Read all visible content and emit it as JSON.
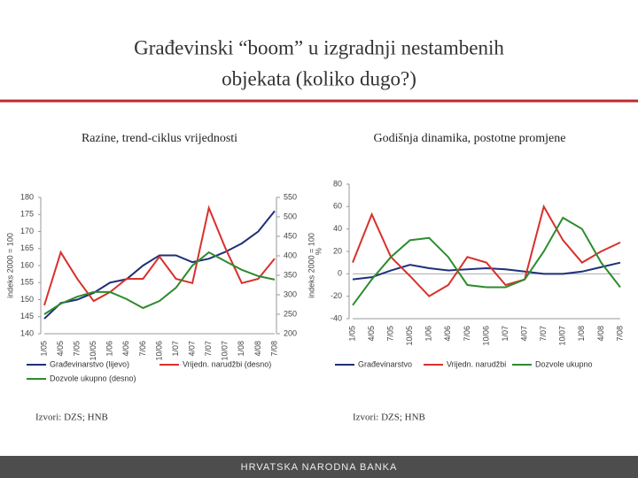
{
  "slide": {
    "title": "Građevinski “boom” u izgradnji nestambenih objekata (koliko dugo?)",
    "footer": "HRVATSKA NARODNA BANKA"
  },
  "chart_data": [
    {
      "type": "line",
      "title": "Razine, trend-ciklus vrijednosti",
      "source": "Izvori: DZS; HNB",
      "ylabel": "indeks 2000 = 100",
      "y2label": "indeks 2000 = 100",
      "categories": [
        "1/05",
        "4/05",
        "7/05",
        "10/05",
        "1/06",
        "4/06",
        "7/06",
        "10/06",
        "1/07",
        "4/07",
        "7/07",
        "10/07",
        "1/08",
        "4/08",
        "7/08"
      ],
      "ylim": [
        140,
        180
      ],
      "yticks": [
        140,
        145,
        150,
        155,
        160,
        165,
        170,
        175,
        180
      ],
      "y2lim": [
        200,
        550
      ],
      "y2ticks": [
        200,
        250,
        300,
        350,
        400,
        450,
        500,
        550
      ],
      "series": [
        {
          "name": "Građevinarstvo (lijevo)",
          "color": "#1f2f7a",
          "values": [
            144.4,
            149,
            150,
            152,
            155,
            156,
            160,
            163,
            163,
            161,
            162,
            164,
            166.5,
            170,
            176
          ]
        },
        {
          "name": "Vrijedn. narudžbi (desno)",
          "color": "#d9302c",
          "axis": "y2",
          "values": [
            273,
            409,
            341,
            284,
            307,
            341,
            341,
            398,
            341,
            330,
            523,
            420,
            330,
            341,
            393
          ]
        },
        {
          "name": "Dozvole ukupno (desno)",
          "color": "#2e8b2e",
          "axis": "y2",
          "values": [
            250,
            277,
            295,
            307,
            307,
            289,
            266,
            284,
            318,
            375,
            409,
            386,
            364,
            348,
            339
          ]
        }
      ]
    },
    {
      "type": "line",
      "title": "Godišnja dinamika, postotne promjene",
      "source": "Izvori: DZS; HNB",
      "ylabel": "%",
      "categories": [
        "1/05",
        "4/05",
        "7/05",
        "10/05",
        "1/06",
        "4/06",
        "7/06",
        "10/06",
        "1/07",
        "4/07",
        "7/07",
        "10/07",
        "1/08",
        "4/08",
        "7/08"
      ],
      "ylim": [
        -40,
        80
      ],
      "yticks": [
        -40,
        -20,
        0,
        20,
        40,
        60,
        80
      ],
      "series": [
        {
          "name": "Građevinarstvo",
          "color": "#1f2f7a",
          "values": [
            -5,
            -3,
            3,
            8,
            5,
            3,
            4,
            5,
            4,
            2,
            0,
            0,
            2,
            6,
            10
          ]
        },
        {
          "name": "Vrijedn. narudžbi",
          "color": "#d9302c",
          "values": [
            10,
            53,
            15,
            -2,
            -20,
            -10,
            15,
            10,
            -10,
            -5,
            60,
            30,
            10,
            20,
            28
          ]
        },
        {
          "name": "Dozvole ukupno",
          "color": "#2e8b2e",
          "values": [
            -28,
            -5,
            15,
            30,
            32,
            15,
            -10,
            -12,
            -12,
            -5,
            20,
            50,
            40,
            10,
            -12
          ]
        }
      ]
    }
  ]
}
